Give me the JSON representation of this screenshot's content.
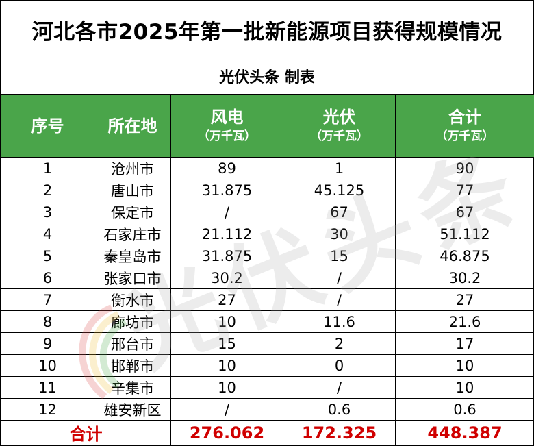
{
  "title": "河北各市2025年第一批新能源项目获得规模情况",
  "subtitle": "光伏头条 制表",
  "headers": {
    "seq": "序号",
    "city": "所在地",
    "wind": "风电",
    "wind_unit": "（万千瓦）",
    "pv": "光伏",
    "pv_unit": "（万千瓦）",
    "total": "合计",
    "total_unit": "（万千瓦）"
  },
  "rows": [
    {
      "seq": "1",
      "city": "沧州市",
      "wind": "89",
      "pv": "1",
      "total": "90"
    },
    {
      "seq": "2",
      "city": "唐山市",
      "wind": "31.875",
      "pv": "45.125",
      "total": "77"
    },
    {
      "seq": "3",
      "city": "保定市",
      "wind": "/",
      "pv": "67",
      "total": "67"
    },
    {
      "seq": "4",
      "city": "石家庄市",
      "wind": "21.112",
      "pv": "30",
      "total": "51.112"
    },
    {
      "seq": "5",
      "city": "秦皇岛市",
      "wind": "31.875",
      "pv": "15",
      "total": "46.875"
    },
    {
      "seq": "6",
      "city": "张家口市",
      "wind": "30.2",
      "pv": "/",
      "total": "30.2"
    },
    {
      "seq": "7",
      "city": "衡水市",
      "wind": "27",
      "pv": "/",
      "total": "27"
    },
    {
      "seq": "8",
      "city": "廊坊市",
      "wind": "10",
      "pv": "11.6",
      "total": "21.6"
    },
    {
      "seq": "9",
      "city": "邢台市",
      "wind": "15",
      "pv": "2",
      "total": "17"
    },
    {
      "seq": "10",
      "city": "邯郸市",
      "wind": "10",
      "pv": "0",
      "total": "10"
    },
    {
      "seq": "11",
      "city": "辛集市",
      "wind": "10",
      "pv": "/",
      "total": "10"
    },
    {
      "seq": "12",
      "city": "雄安新区",
      "wind": "/",
      "pv": "0.6",
      "total": "0.6"
    }
  ],
  "totals": {
    "label": "合计",
    "wind": "276.062",
    "pv": "172.325",
    "total": "448.387"
  },
  "watermark": "光伏头条",
  "colors": {
    "header_bg": "#4aa54a",
    "total_text": "#d00000"
  }
}
